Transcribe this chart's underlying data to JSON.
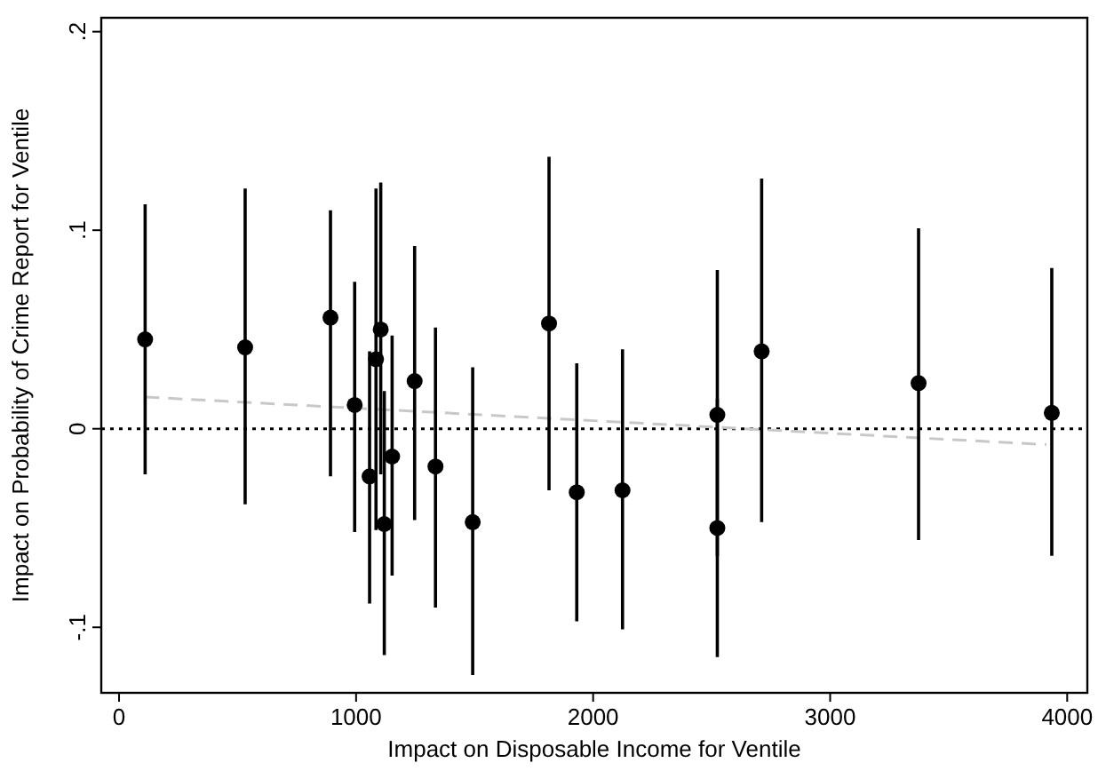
{
  "chart_data": {
    "type": "scatter",
    "xlabel": "Impact on Disposable Income for Ventile",
    "ylabel": "Impact on Probability of Crime Report for Ventile",
    "xlim": [
      -75,
      4085
    ],
    "xticks": [
      0,
      1000,
      2000,
      3000,
      4000
    ],
    "ylim": [
      -0.133,
      0.207
    ],
    "yticks": [
      {
        "value": -0.1,
        "label": "-.1"
      },
      0,
      {
        "value": 0.1,
        "label": ".1"
      },
      {
        "value": 0.2,
        "label": ".2"
      }
    ],
    "grid": false,
    "marker": "circle",
    "ref_lines": [
      {
        "axis": "y",
        "value": 0,
        "color": "#000000",
        "line_style": "dotted"
      }
    ],
    "series": [
      {
        "color": "#000000",
        "x": [
          110,
          532,
          892,
          994,
          1057,
          1084,
          1104,
          1119,
          1152,
          1247,
          1335,
          1492,
          1814,
          1931,
          2124,
          2524,
          2524,
          2711,
          3373,
          3935
        ],
        "values": [
          0.045,
          0.041,
          0.056,
          0.012,
          -0.024,
          0.035,
          0.05,
          -0.048,
          -0.014,
          0.024,
          -0.019,
          -0.047,
          0.053,
          -0.032,
          -0.031,
          0.007,
          -0.05,
          0.039,
          0.023,
          0.008
        ],
        "errors": [
          [
            -0.023,
            0.113
          ],
          [
            -0.038,
            0.121
          ],
          [
            -0.024,
            0.11
          ],
          [
            -0.052,
            0.074
          ],
          [
            -0.088,
            0.039
          ],
          [
            -0.051,
            0.121
          ],
          [
            -0.023,
            0.124
          ],
          [
            -0.114,
            0.019
          ],
          [
            -0.074,
            0.047
          ],
          [
            -0.046,
            0.092
          ],
          [
            -0.09,
            0.051
          ],
          [
            -0.124,
            0.031
          ],
          [
            -0.031,
            0.137
          ],
          [
            -0.097,
            0.033
          ],
          [
            -0.101,
            0.04
          ],
          [
            -0.064,
            0.08
          ],
          [
            -0.115,
            0.015
          ],
          [
            -0.047,
            0.126
          ],
          [
            -0.056,
            0.101
          ],
          [
            -0.064,
            0.081
          ]
        ]
      },
      {
        "type": "line",
        "color": "#c8c8c8",
        "line_style": "dashed",
        "marker": "none",
        "x": [
          110,
          3912
        ],
        "values": [
          0.016,
          -0.008
        ]
      }
    ]
  }
}
